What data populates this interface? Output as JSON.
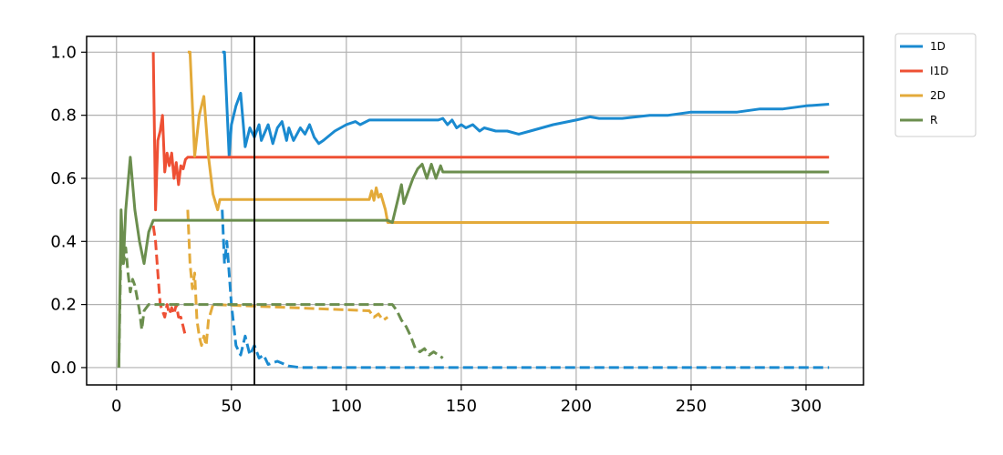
{
  "chart_data": {
    "type": "line",
    "title": "",
    "xlabel": "",
    "ylabel": "",
    "xlim": [
      -13,
      325
    ],
    "ylim": [
      -0.055,
      1.05
    ],
    "xticks": [
      0,
      50,
      100,
      150,
      200,
      250,
      300
    ],
    "yticks": [
      0.0,
      0.2,
      0.4,
      0.6,
      0.8,
      1.0
    ],
    "xtick_labels": [
      "0",
      "50",
      "100",
      "150",
      "200",
      "250",
      "300"
    ],
    "ytick_labels": [
      "0.0",
      "0.2",
      "0.4",
      "0.6",
      "0.8",
      "1.0"
    ],
    "grid": true,
    "legend_position": "outside-top-right",
    "vline": 60,
    "series": [
      {
        "name": "1D",
        "color": "#1a8ad0",
        "solid": [
          [
            46,
            1.0
          ],
          [
            47,
            1.0
          ],
          [
            49,
            0.67
          ],
          [
            50,
            0.77
          ],
          [
            52,
            0.83
          ],
          [
            54,
            0.87
          ],
          [
            56,
            0.7
          ],
          [
            58,
            0.76
          ],
          [
            60,
            0.73
          ],
          [
            62,
            0.77
          ],
          [
            63,
            0.72
          ],
          [
            66,
            0.77
          ],
          [
            68,
            0.71
          ],
          [
            70,
            0.76
          ],
          [
            72,
            0.78
          ],
          [
            74,
            0.72
          ],
          [
            75,
            0.76
          ],
          [
            77,
            0.72
          ],
          [
            80,
            0.76
          ],
          [
            82,
            0.74
          ],
          [
            84,
            0.77
          ],
          [
            86,
            0.73
          ],
          [
            88,
            0.71
          ],
          [
            90,
            0.72
          ],
          [
            95,
            0.75
          ],
          [
            100,
            0.77
          ],
          [
            104,
            0.78
          ],
          [
            106,
            0.77
          ],
          [
            110,
            0.785
          ],
          [
            140,
            0.785
          ],
          [
            142,
            0.79
          ],
          [
            144,
            0.77
          ],
          [
            146,
            0.785
          ],
          [
            148,
            0.76
          ],
          [
            150,
            0.77
          ],
          [
            152,
            0.76
          ],
          [
            155,
            0.77
          ],
          [
            158,
            0.75
          ],
          [
            160,
            0.76
          ],
          [
            165,
            0.75
          ],
          [
            170,
            0.75
          ],
          [
            175,
            0.74
          ],
          [
            180,
            0.75
          ],
          [
            190,
            0.77
          ],
          [
            200,
            0.785
          ],
          [
            206,
            0.795
          ],
          [
            210,
            0.79
          ],
          [
            220,
            0.79
          ],
          [
            232,
            0.8
          ],
          [
            240,
            0.8
          ],
          [
            250,
            0.81
          ],
          [
            260,
            0.81
          ],
          [
            270,
            0.81
          ],
          [
            280,
            0.82
          ],
          [
            290,
            0.82
          ],
          [
            300,
            0.83
          ],
          [
            310,
            0.835
          ]
        ],
        "dashed": [
          [
            46,
            0.5
          ],
          [
            47,
            0.33
          ],
          [
            48,
            0.4
          ],
          [
            50,
            0.2
          ],
          [
            52,
            0.07
          ],
          [
            54,
            0.04
          ],
          [
            56,
            0.1
          ],
          [
            58,
            0.04
          ],
          [
            60,
            0.07
          ],
          [
            62,
            0.03
          ],
          [
            64,
            0.04
          ],
          [
            66,
            0.01
          ],
          [
            70,
            0.02
          ],
          [
            75,
            0.005
          ],
          [
            80,
            0.0
          ],
          [
            110,
            0.0
          ],
          [
            142,
            0.0
          ],
          [
            310,
            0.0
          ]
        ]
      },
      {
        "name": "I1D",
        "color": "#ee5034",
        "solid": [
          [
            16,
            1.0
          ],
          [
            17,
            0.5
          ],
          [
            18,
            0.72
          ],
          [
            19,
            0.75
          ],
          [
            20,
            0.8
          ],
          [
            21,
            0.62
          ],
          [
            22,
            0.68
          ],
          [
            23,
            0.64
          ],
          [
            24,
            0.68
          ],
          [
            25,
            0.6
          ],
          [
            26,
            0.65
          ],
          [
            27,
            0.58
          ],
          [
            28,
            0.64
          ],
          [
            29,
            0.63
          ],
          [
            30,
            0.66
          ],
          [
            31,
            0.667
          ],
          [
            310,
            0.667
          ]
        ],
        "dashed": [
          [
            16,
            0.45
          ],
          [
            17,
            0.4
          ],
          [
            18,
            0.3
          ],
          [
            19,
            0.2
          ],
          [
            20,
            0.18
          ],
          [
            21,
            0.16
          ],
          [
            22,
            0.2
          ],
          [
            23,
            0.17
          ],
          [
            24,
            0.19
          ],
          [
            25,
            0.17
          ],
          [
            26,
            0.2
          ],
          [
            27,
            0.16
          ],
          [
            28,
            0.16
          ],
          [
            29,
            0.13
          ],
          [
            30,
            0.1
          ]
        ]
      },
      {
        "name": "2D",
        "color": "#e3aa3a",
        "solid": [
          [
            31,
            1.0
          ],
          [
            32,
            1.0
          ],
          [
            34,
            0.67
          ],
          [
            36,
            0.8
          ],
          [
            38,
            0.86
          ],
          [
            40,
            0.67
          ],
          [
            42,
            0.55
          ],
          [
            44,
            0.5
          ],
          [
            45,
            0.533
          ],
          [
            110,
            0.533
          ],
          [
            111,
            0.56
          ],
          [
            112,
            0.53
          ],
          [
            113,
            0.57
          ],
          [
            114,
            0.54
          ],
          [
            115,
            0.55
          ],
          [
            117,
            0.5
          ],
          [
            118,
            0.46
          ],
          [
            119,
            0.46
          ],
          [
            310,
            0.46
          ]
        ],
        "dashed": [
          [
            31,
            0.5
          ],
          [
            32,
            0.33
          ],
          [
            33,
            0.25
          ],
          [
            34,
            0.3
          ],
          [
            35,
            0.15
          ],
          [
            36,
            0.1
          ],
          [
            37,
            0.07
          ],
          [
            38,
            0.1
          ],
          [
            39,
            0.07
          ],
          [
            40,
            0.15
          ],
          [
            42,
            0.2
          ],
          [
            110,
            0.18
          ],
          [
            112,
            0.16
          ],
          [
            114,
            0.17
          ],
          [
            116,
            0.15
          ],
          [
            118,
            0.16
          ]
        ]
      },
      {
        "name": "R",
        "color": "#6b8e4e",
        "solid": [
          [
            1,
            0.0
          ],
          [
            2,
            0.5
          ],
          [
            3,
            0.33
          ],
          [
            4,
            0.5
          ],
          [
            6,
            0.667
          ],
          [
            8,
            0.5
          ],
          [
            10,
            0.4
          ],
          [
            12,
            0.33
          ],
          [
            14,
            0.43
          ],
          [
            16,
            0.467
          ],
          [
            118,
            0.467
          ],
          [
            120,
            0.46
          ],
          [
            122,
            0.52
          ],
          [
            124,
            0.58
          ],
          [
            125,
            0.52
          ],
          [
            127,
            0.56
          ],
          [
            129,
            0.6
          ],
          [
            131,
            0.63
          ],
          [
            133,
            0.645
          ],
          [
            135,
            0.6
          ],
          [
            137,
            0.645
          ],
          [
            139,
            0.6
          ],
          [
            141,
            0.64
          ],
          [
            142,
            0.62
          ],
          [
            310,
            0.62
          ]
        ],
        "dashed": [
          [
            1,
            0.0
          ],
          [
            2,
            0.4
          ],
          [
            3,
            0.33
          ],
          [
            4,
            0.38
          ],
          [
            5,
            0.3
          ],
          [
            6,
            0.24
          ],
          [
            7,
            0.28
          ],
          [
            8,
            0.26
          ],
          [
            9,
            0.22
          ],
          [
            10,
            0.18
          ],
          [
            11,
            0.12
          ],
          [
            12,
            0.18
          ],
          [
            14,
            0.2
          ],
          [
            120,
            0.2
          ],
          [
            122,
            0.18
          ],
          [
            124,
            0.15
          ],
          [
            126,
            0.13
          ],
          [
            128,
            0.1
          ],
          [
            130,
            0.06
          ],
          [
            132,
            0.05
          ],
          [
            134,
            0.06
          ],
          [
            136,
            0.04
          ],
          [
            138,
            0.05
          ],
          [
            140,
            0.04
          ],
          [
            142,
            0.03
          ]
        ]
      }
    ]
  }
}
